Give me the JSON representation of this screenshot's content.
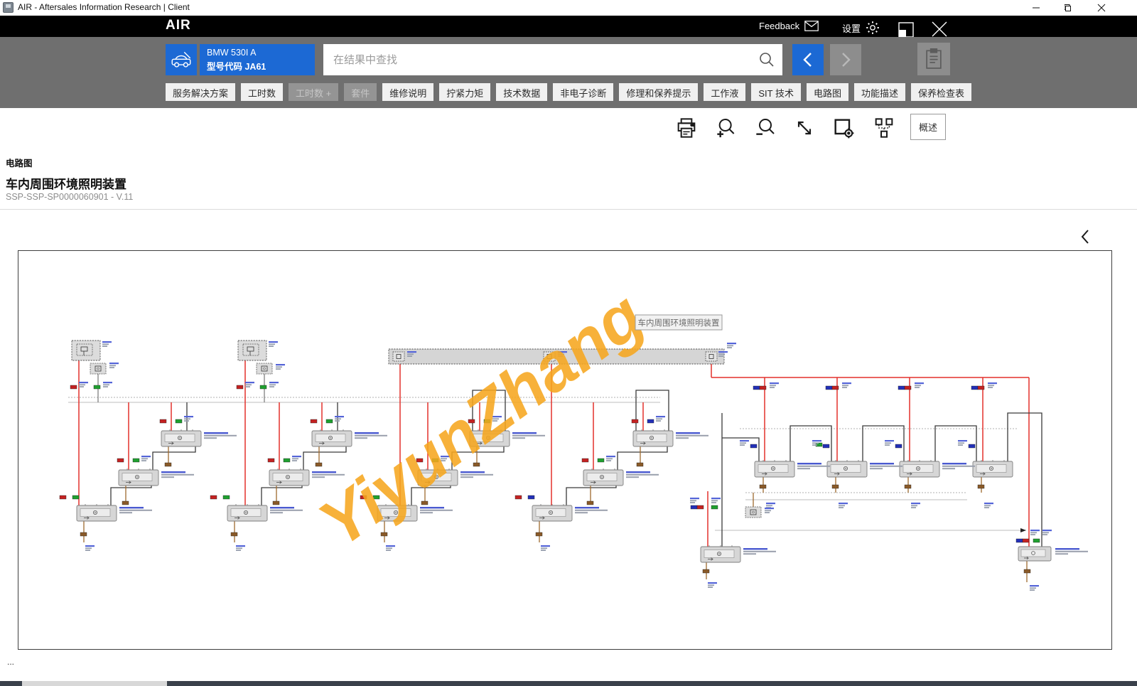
{
  "window": {
    "title": "AIR - Aftersales Information Research | Client"
  },
  "header": {
    "brand": "AIR",
    "feedback_label": "Feedback",
    "settings_label": "设置"
  },
  "toolbar": {
    "vehicle": {
      "line1": "BMW 530I A",
      "line2": "型号代码 JA61"
    },
    "search": {
      "placeholder": "在结果中查找"
    },
    "tabs": [
      {
        "name": "tab-service-solutions",
        "label": "服务解决方案",
        "disabled": false
      },
      {
        "name": "tab-labor-hours",
        "label": "工时数",
        "disabled": false
      },
      {
        "name": "tab-labor-hours-plus",
        "label": "工时数 +",
        "disabled": true
      },
      {
        "name": "tab-kits",
        "label": "套件",
        "disabled": true
      },
      {
        "name": "tab-repair-instructions",
        "label": "维修说明",
        "disabled": false
      },
      {
        "name": "tab-tightening-torque",
        "label": "拧紧力矩",
        "disabled": false
      },
      {
        "name": "tab-technical-data",
        "label": "技术数据",
        "disabled": false
      },
      {
        "name": "tab-non-electronic-diagnosis",
        "label": "非电子诊断",
        "disabled": false
      },
      {
        "name": "tab-repair-maintenance-tips",
        "label": "修理和保养提示",
        "disabled": false
      },
      {
        "name": "tab-fluids",
        "label": "工作液",
        "disabled": false
      },
      {
        "name": "tab-sit-technology",
        "label": "SIT 技术",
        "disabled": false
      },
      {
        "name": "tab-circuit-diagram",
        "label": "电路图",
        "disabled": false
      },
      {
        "name": "tab-function-description",
        "label": "功能描述",
        "disabled": false
      },
      {
        "name": "tab-maintenance-checklist",
        "label": "保养检查表",
        "disabled": false
      }
    ]
  },
  "icon_toolbar": {
    "overview_label": "概述"
  },
  "content": {
    "section": "电路图",
    "title": "车内周围环境照明装置",
    "doc_id": "SSP-SSP-SP0000060901 - V.11",
    "more": "...",
    "diagram": {
      "tooltip": "车内周围环境照明装置",
      "watermark": "YiyunZhang"
    }
  },
  "colors": {
    "accent_blue": "#1c69d4",
    "wire_red": "#e3302c",
    "wire_brown": "#9e6a2e",
    "watermark_orange": "#f6a71f"
  }
}
